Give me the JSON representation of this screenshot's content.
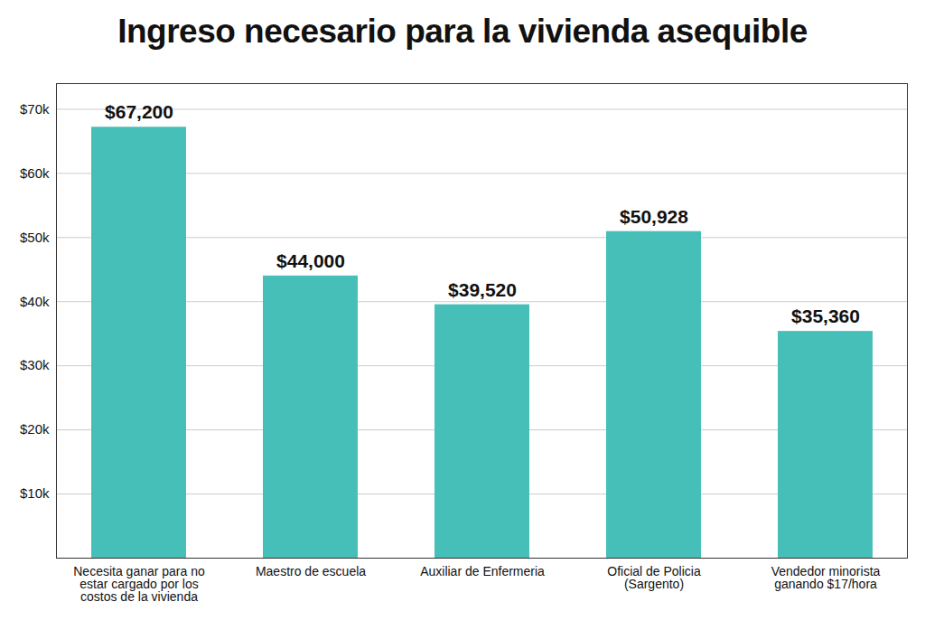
{
  "chart_data": {
    "type": "bar",
    "title": "Ingreso necesario para la vivienda asequible",
    "categories": [
      "Necesita ganar para no estar cargado por los costos de la vivienda",
      "Maestro de escuela",
      "Auxiliar de Enfermeria",
      "Oficial de Policia (Sargento)",
      "Vendedor minorista ganando $17/hora"
    ],
    "values": [
      67200,
      44000,
      39520,
      50928,
      35360
    ],
    "value_labels": [
      "$67,200",
      "$44,000",
      "$39,520",
      "$50,928",
      "$35,360"
    ],
    "color": "#47bfb9",
    "ylim": [
      0,
      74000
    ],
    "yticks": [
      {
        "value": 10000,
        "label": "$10k"
      },
      {
        "value": 20000,
        "label": "$20k"
      },
      {
        "value": 30000,
        "label": "$30k"
      },
      {
        "value": 40000,
        "label": "$40k"
      },
      {
        "value": 50000,
        "label": "$50k"
      },
      {
        "value": 60000,
        "label": "$60k"
      },
      {
        "value": 70000,
        "label": "$70k"
      }
    ],
    "grid": true,
    "data_labels": true
  }
}
